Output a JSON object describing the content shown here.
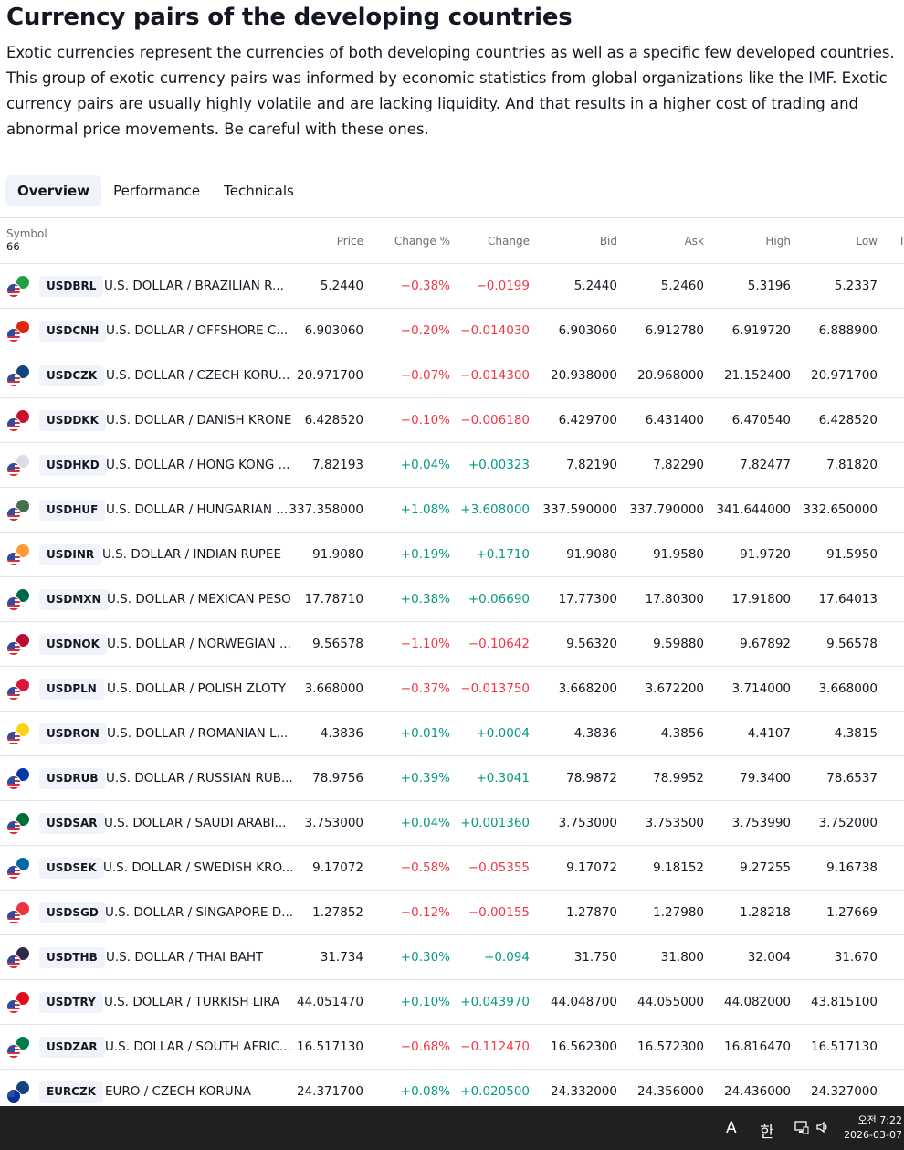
{
  "title": "Currency pairs of the developing countries",
  "description": "Exotic currencies represent the currencies of both developing countries as well as a specific few developed countries. This group of exotic currency pairs was informed by economic statistics from global organizations like the IMF. Exotic currency pairs are usually highly volatile and are lacking liquidity. And that results in a higher cost of trading and abnormal price movements. Be careful with these ones.",
  "tabs": [
    {
      "label": "Overview",
      "active": true
    },
    {
      "label": "Performance",
      "active": false
    },
    {
      "label": "Technicals",
      "active": false
    }
  ],
  "table": {
    "columns": {
      "symbol": "Symbol",
      "count": "66",
      "price": "Price",
      "change_pct": "Change %",
      "change": "Change",
      "bid": "Bid",
      "ask": "Ask",
      "high": "High",
      "low": "Low",
      "extra": "T"
    },
    "colors": {
      "positive": "#089981",
      "negative": "#f23645"
    },
    "rows": [
      {
        "symbol": "USDBRL",
        "name": "U.S. DOLLAR / BRAZILIAN R...",
        "price": "5.2440",
        "change_pct": "−0.38%",
        "change": "−0.0199",
        "bid": "5.2440",
        "ask": "5.2460",
        "high": "5.3196",
        "low": "5.2337",
        "direction": "neg",
        "flag_color": "#229e45"
      },
      {
        "symbol": "USDCNH",
        "name": "U.S. DOLLAR / OFFSHORE C...",
        "price": "6.903060",
        "change_pct": "−0.20%",
        "change": "−0.014030",
        "bid": "6.903060",
        "ask": "6.912780",
        "high": "6.919720",
        "low": "6.888900",
        "direction": "neg",
        "flag_color": "#de2910"
      },
      {
        "symbol": "USDCZK",
        "name": "U.S. DOLLAR / CZECH KORU...",
        "price": "20.971700",
        "change_pct": "−0.07%",
        "change": "−0.014300",
        "bid": "20.938000",
        "ask": "20.968000",
        "high": "21.152400",
        "low": "20.971700",
        "direction": "neg",
        "flag_color": "#11457e"
      },
      {
        "symbol": "USDDKK",
        "name": "U.S. DOLLAR / DANISH KRONE",
        "price": "6.428520",
        "change_pct": "−0.10%",
        "change": "−0.006180",
        "bid": "6.429700",
        "ask": "6.431400",
        "high": "6.470540",
        "low": "6.428520",
        "direction": "neg",
        "flag_color": "#c8102e"
      },
      {
        "symbol": "USDHKD",
        "name": "U.S. DOLLAR / HONG KONG ...",
        "price": "7.82193",
        "change_pct": "+0.04%",
        "change": "+0.00323",
        "bid": "7.82190",
        "ask": "7.82290",
        "high": "7.82477",
        "low": "7.81820",
        "direction": "pos",
        "flag_color": "#dadde3"
      },
      {
        "symbol": "USDHUF",
        "name": "U.S. DOLLAR / HUNGARIAN ...",
        "price": "337.358000",
        "change_pct": "+1.08%",
        "change": "+3.608000",
        "bid": "337.590000",
        "ask": "337.790000",
        "high": "341.644000",
        "low": "332.650000",
        "direction": "pos",
        "flag_color": "#477050"
      },
      {
        "symbol": "USDINR",
        "name": "U.S. DOLLAR / INDIAN RUPEE",
        "price": "91.9080",
        "change_pct": "+0.19%",
        "change": "+0.1710",
        "bid": "91.9080",
        "ask": "91.9580",
        "high": "91.9720",
        "low": "91.5950",
        "direction": "pos",
        "flag_color": "#ff9933"
      },
      {
        "symbol": "USDMXN",
        "name": "U.S. DOLLAR / MEXICAN PESO",
        "price": "17.78710",
        "change_pct": "+0.38%",
        "change": "+0.06690",
        "bid": "17.77300",
        "ask": "17.80300",
        "high": "17.91800",
        "low": "17.64013",
        "direction": "pos",
        "flag_color": "#006847"
      },
      {
        "symbol": "USDNOK",
        "name": "U.S. DOLLAR / NORWEGIAN ...",
        "price": "9.56578",
        "change_pct": "−1.10%",
        "change": "−0.10642",
        "bid": "9.56320",
        "ask": "9.59880",
        "high": "9.67892",
        "low": "9.56578",
        "direction": "neg",
        "flag_color": "#ba0c2f"
      },
      {
        "symbol": "USDPLN",
        "name": "U.S. DOLLAR / POLISH ZLOTY",
        "price": "3.668000",
        "change_pct": "−0.37%",
        "change": "−0.013750",
        "bid": "3.668200",
        "ask": "3.672200",
        "high": "3.714000",
        "low": "3.668000",
        "direction": "neg",
        "flag_color": "#dc143c"
      },
      {
        "symbol": "USDRON",
        "name": "U.S. DOLLAR / ROMANIAN L...",
        "price": "4.3836",
        "change_pct": "+0.01%",
        "change": "+0.0004",
        "bid": "4.3836",
        "ask": "4.3856",
        "high": "4.4107",
        "low": "4.3815",
        "direction": "pos",
        "flag_color": "#fcd116"
      },
      {
        "symbol": "USDRUB",
        "name": "U.S. DOLLAR / RUSSIAN RUB...",
        "price": "78.9756",
        "change_pct": "+0.39%",
        "change": "+0.3041",
        "bid": "78.9872",
        "ask": "78.9952",
        "high": "79.3400",
        "low": "78.6537",
        "direction": "pos",
        "flag_color": "#0039a6"
      },
      {
        "symbol": "USDSAR",
        "name": "U.S. DOLLAR / SAUDI ARABI...",
        "price": "3.753000",
        "change_pct": "+0.04%",
        "change": "+0.001360",
        "bid": "3.753000",
        "ask": "3.753500",
        "high": "3.753990",
        "low": "3.752000",
        "direction": "pos",
        "flag_color": "#006c35"
      },
      {
        "symbol": "USDSEK",
        "name": "U.S. DOLLAR / SWEDISH KRO...",
        "price": "9.17072",
        "change_pct": "−0.58%",
        "change": "−0.05355",
        "bid": "9.17072",
        "ask": "9.18152",
        "high": "9.27255",
        "low": "9.16738",
        "direction": "neg",
        "flag_color": "#006aa7"
      },
      {
        "symbol": "USDSGD",
        "name": "U.S. DOLLAR / SINGAPORE D...",
        "price": "1.27852",
        "change_pct": "−0.12%",
        "change": "−0.00155",
        "bid": "1.27870",
        "ask": "1.27980",
        "high": "1.28218",
        "low": "1.27669",
        "direction": "neg",
        "flag_color": "#ef3340"
      },
      {
        "symbol": "USDTHB",
        "name": "U.S. DOLLAR / THAI BAHT",
        "price": "31.734",
        "change_pct": "+0.30%",
        "change": "+0.094",
        "bid": "31.750",
        "ask": "31.800",
        "high": "32.004",
        "low": "31.670",
        "direction": "pos",
        "flag_color": "#2d2a4a"
      },
      {
        "symbol": "USDTRY",
        "name": "U.S. DOLLAR / TURKISH LIRA",
        "price": "44.051470",
        "change_pct": "+0.10%",
        "change": "+0.043970",
        "bid": "44.048700",
        "ask": "44.055000",
        "high": "44.082000",
        "low": "43.815100",
        "direction": "pos",
        "flag_color": "#e30a17"
      },
      {
        "symbol": "USDZAR",
        "name": "U.S. DOLLAR / SOUTH AFRIC...",
        "price": "16.517130",
        "change_pct": "−0.68%",
        "change": "−0.112470",
        "bid": "16.562300",
        "ask": "16.572300",
        "high": "16.816470",
        "low": "16.517130",
        "direction": "neg",
        "flag_color": "#007a4d"
      },
      {
        "symbol": "EURCZK",
        "name": "EURO / CZECH KORUNA",
        "price": "24.371700",
        "change_pct": "+0.08%",
        "change": "+0.020500",
        "bid": "24.332000",
        "ask": "24.356000",
        "high": "24.436000",
        "low": "24.327000",
        "direction": "pos",
        "flag_color": "#11457e",
        "base_flag_color": "#003399"
      }
    ]
  },
  "taskbar": {
    "ime_a": "A",
    "ime_han": "한",
    "time": "오전 7:22",
    "date": "2026-03-07"
  }
}
